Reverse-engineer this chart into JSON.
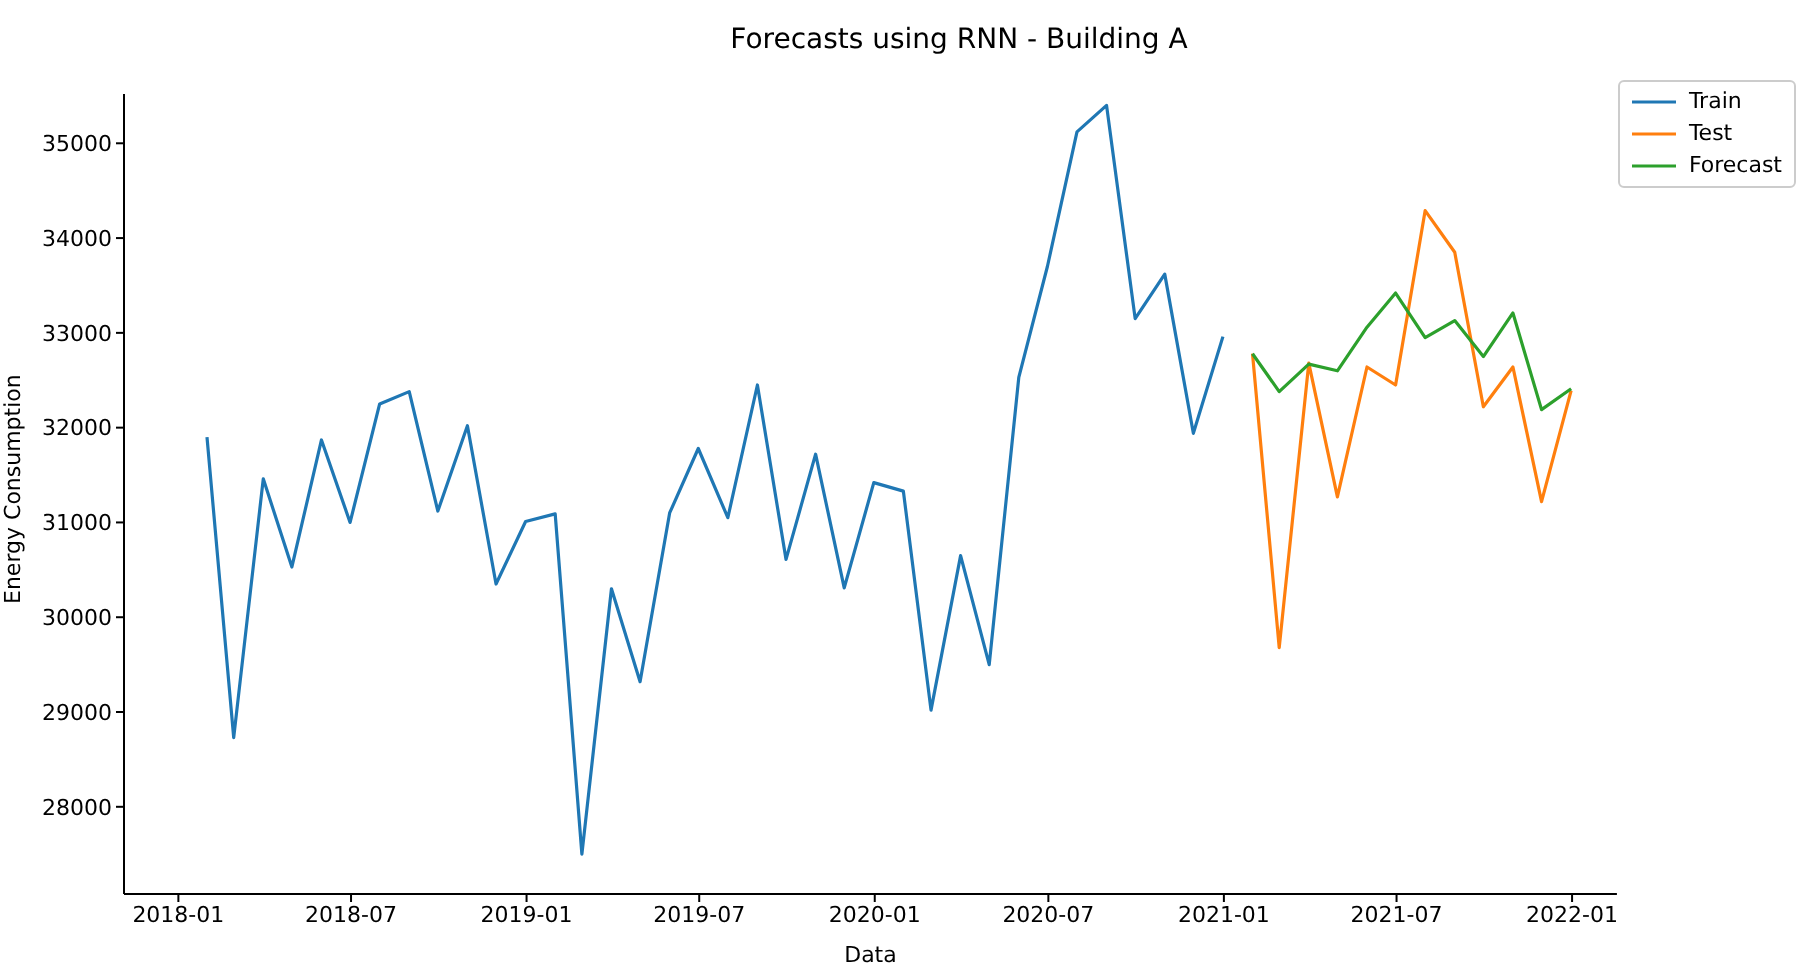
{
  "chart_data": {
    "type": "line",
    "title": "Forecasts using RNN - Building A",
    "xlabel": "Data",
    "ylabel": "Energy Consumption",
    "xlim": [
      "2017-11-05",
      "2022-02-17"
    ],
    "xticks": [
      "2018-01",
      "2018-07",
      "2019-01",
      "2019-07",
      "2020-01",
      "2020-07",
      "2021-01",
      "2021-07",
      "2022-01"
    ],
    "ylim": [
      27080,
      35520
    ],
    "yticks": [
      28000,
      29000,
      30000,
      31000,
      32000,
      33000,
      34000,
      35000
    ],
    "grid": false,
    "legend": "top right",
    "marker": "none",
    "line_style": "solid",
    "series": [
      {
        "name": "Train",
        "color": "#1f77b4",
        "x": [
          "2018-01-31",
          "2018-02-28",
          "2018-03-31",
          "2018-04-30",
          "2018-05-31",
          "2018-06-30",
          "2018-07-31",
          "2018-08-31",
          "2018-09-30",
          "2018-10-31",
          "2018-11-30",
          "2018-12-31",
          "2019-01-31",
          "2019-02-28",
          "2019-03-31",
          "2019-04-30",
          "2019-05-31",
          "2019-06-30",
          "2019-07-31",
          "2019-08-31",
          "2019-09-30",
          "2019-10-31",
          "2019-11-30",
          "2019-12-31",
          "2020-01-31",
          "2020-02-29",
          "2020-03-31",
          "2020-04-30",
          "2020-05-31",
          "2020-06-30",
          "2020-07-31",
          "2020-08-31",
          "2020-09-30",
          "2020-10-31",
          "2020-11-30",
          "2020-12-31"
        ],
        "values": [
          31900,
          28730,
          31460,
          30530,
          31870,
          31000,
          32250,
          32380,
          31120,
          32020,
          30350,
          31010,
          31090,
          27500,
          30300,
          29320,
          31100,
          31780,
          31050,
          32450,
          30610,
          31720,
          30310,
          31420,
          31330,
          29020,
          30650,
          29500,
          32530,
          33700,
          35120,
          35400,
          33150,
          33620,
          31940,
          32960
        ]
      },
      {
        "name": "Test",
        "color": "#ff7f0e",
        "x": [
          "2021-01-31",
          "2021-02-28",
          "2021-03-31",
          "2021-04-30",
          "2021-05-31",
          "2021-06-30",
          "2021-07-31",
          "2021-08-31",
          "2021-09-30",
          "2021-10-31",
          "2021-11-30",
          "2021-12-31"
        ],
        "values": [
          32780,
          29680,
          32680,
          31270,
          32640,
          32450,
          34290,
          33850,
          32220,
          32640,
          31220,
          32390
        ]
      },
      {
        "name": "Forecast",
        "color": "#2ca02c",
        "x": [
          "2021-01-31",
          "2021-02-28",
          "2021-03-31",
          "2021-04-30",
          "2021-05-31",
          "2021-06-30",
          "2021-07-31",
          "2021-08-31",
          "2021-09-30",
          "2021-10-31",
          "2021-11-30",
          "2021-12-31"
        ],
        "values": [
          32780,
          32380,
          32670,
          32600,
          33060,
          33420,
          32950,
          33130,
          32750,
          33210,
          32190,
          32410
        ]
      }
    ]
  }
}
